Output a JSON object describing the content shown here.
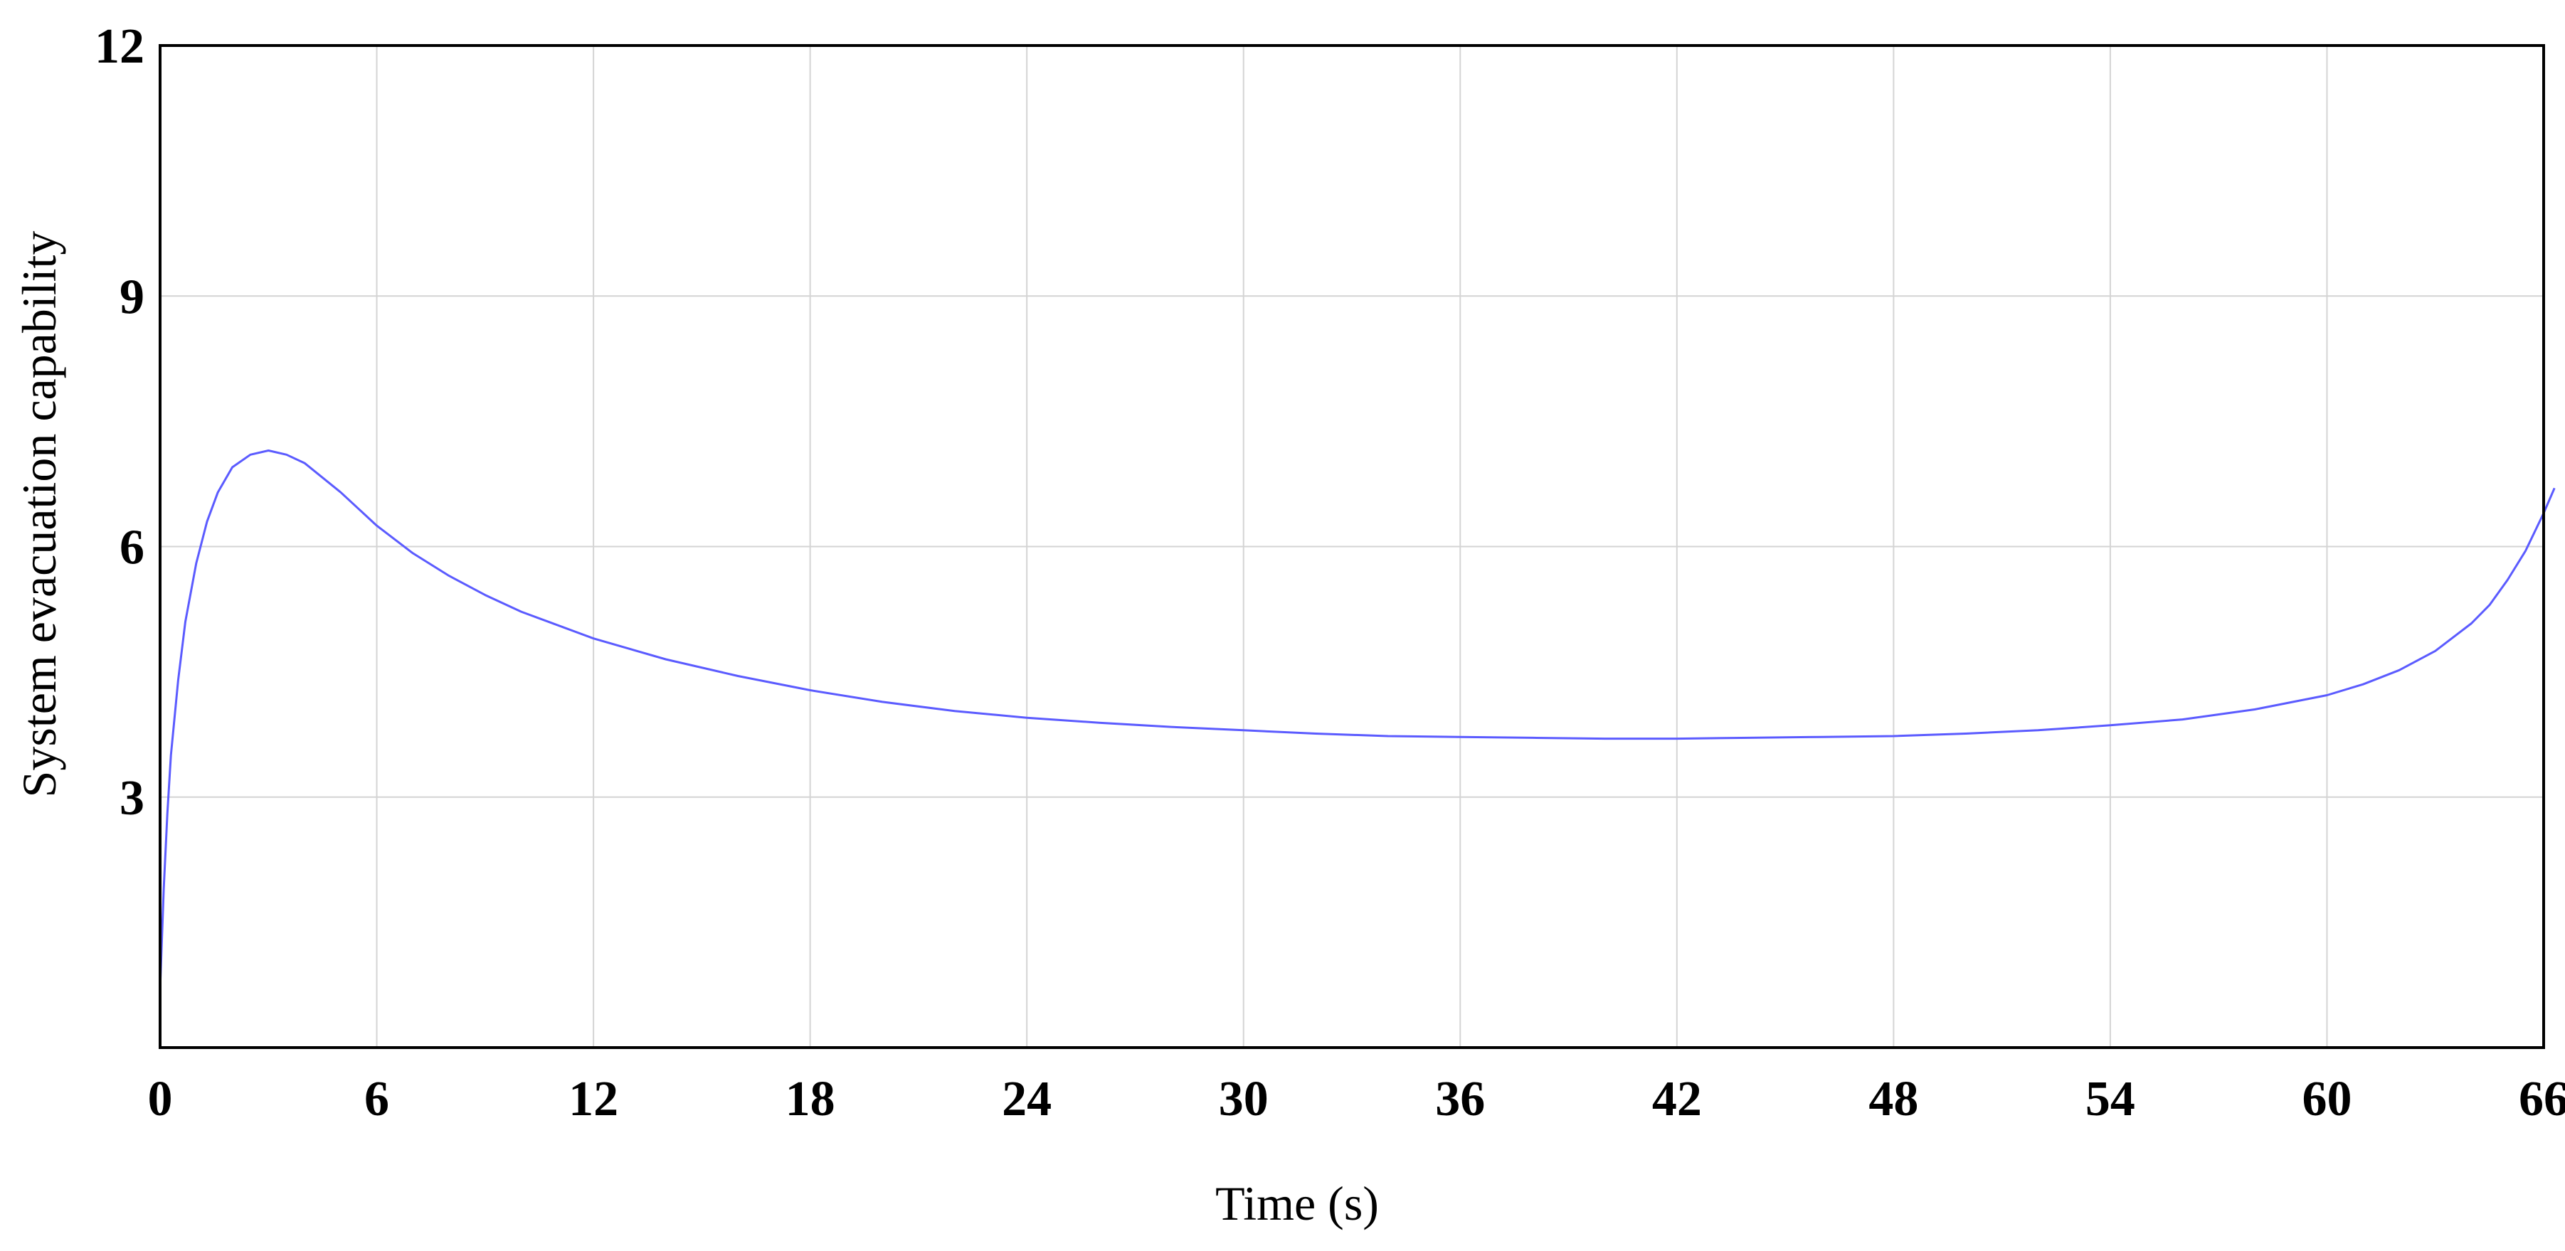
{
  "chart_data": {
    "type": "line",
    "title": "",
    "xlabel": "Time (s)",
    "ylabel": "System evacuation capability",
    "xlim": [
      0,
      66
    ],
    "ylim": [
      0,
      12
    ],
    "x_ticks": [
      0,
      6,
      12,
      18,
      24,
      30,
      36,
      42,
      48,
      54,
      60,
      66
    ],
    "x_tick_labels": [
      "0",
      "6",
      "12",
      "18",
      "24",
      "30",
      "36",
      "42",
      "48",
      "54",
      "60",
      "66"
    ],
    "y_ticks": [
      3,
      6,
      9,
      12
    ],
    "y_tick_labels": [
      "3",
      "6",
      "9",
      "12"
    ],
    "grid": true,
    "legend": "none",
    "colors": {
      "line": "#5b5bff",
      "grid": "#d4d4d4",
      "axis": "#000000"
    },
    "series": [
      {
        "x": [
          0,
          0.1,
          0.2,
          0.3,
          0.5,
          0.7,
          1.0,
          1.3,
          1.6,
          2.0,
          2.5,
          3.0,
          3.5,
          4.0,
          5.0,
          6.0,
          7.0,
          8.0,
          9.0,
          10.0,
          12.0,
          14.0,
          16.0,
          18.0,
          20.0,
          22.0,
          24.0,
          26.0,
          28.0,
          30.0,
          32.0,
          34.0,
          36.0,
          38.0,
          40.0,
          42.0,
          44.0,
          46.0,
          48.0,
          50.0,
          52.0,
          54.0,
          56.0,
          58.0,
          60.0,
          61.0,
          62.0,
          63.0,
          64.0,
          64.5,
          65.0,
          65.5,
          66.0,
          66.3
        ],
        "y": [
          0.7,
          1.9,
          2.8,
          3.5,
          4.4,
          5.1,
          5.8,
          6.3,
          6.65,
          6.95,
          7.1,
          7.15,
          7.1,
          7.0,
          6.65,
          6.25,
          5.92,
          5.65,
          5.42,
          5.22,
          4.9,
          4.65,
          4.45,
          4.28,
          4.14,
          4.03,
          3.95,
          3.89,
          3.84,
          3.8,
          3.76,
          3.73,
          3.72,
          3.71,
          3.7,
          3.7,
          3.71,
          3.72,
          3.73,
          3.76,
          3.8,
          3.86,
          3.93,
          4.05,
          4.22,
          4.35,
          4.52,
          4.75,
          5.08,
          5.3,
          5.6,
          5.95,
          6.4,
          6.7
        ]
      }
    ]
  }
}
